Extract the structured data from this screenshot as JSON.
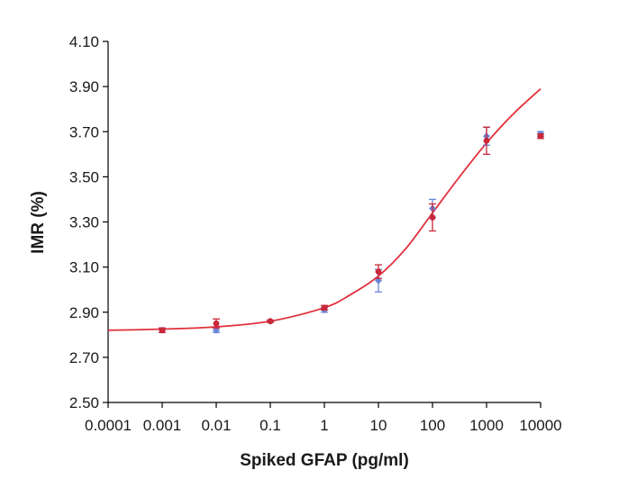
{
  "chart_data": {
    "type": "scatter",
    "title": "",
    "xlabel": "Spiked GFAP (pg/ml)",
    "ylabel": "IMR (%)",
    "x_scale": "log",
    "xlim": [
      0.0001,
      10000
    ],
    "ylim": [
      2.5,
      4.1
    ],
    "x_ticks": [
      "0.0001",
      "0.001",
      "0.01",
      "0.1",
      "1",
      "10",
      "100",
      "1000",
      "10000"
    ],
    "y_ticks": [
      "2.50",
      "2.70",
      "2.90",
      "3.10",
      "3.30",
      "3.50",
      "3.70",
      "3.90",
      "4.10"
    ],
    "grid": false,
    "legend": "none",
    "colors": {
      "series_a": "#6b84d6",
      "series_b": "#c8283a",
      "fit": "#e0303c",
      "axis": "#000000"
    },
    "series": [
      {
        "x": [
          0.001,
          0.01,
          0.1,
          1,
          10,
          100,
          1000,
          10000
        ],
        "y": [
          2.82,
          2.82,
          2.86,
          2.91,
          3.04,
          3.36,
          3.68,
          3.69
        ],
        "err": [
          0.01,
          0.01,
          0.005,
          0.01,
          0.05,
          0.04,
          0.04,
          0.01
        ]
      },
      {
        "x": [
          0.001,
          0.01,
          0.1,
          1,
          10,
          100,
          1000,
          10000
        ],
        "y": [
          2.82,
          2.85,
          2.86,
          2.92,
          3.08,
          3.32,
          3.66,
          3.68
        ],
        "err": [
          0.01,
          0.02,
          0.005,
          0.01,
          0.03,
          0.06,
          0.06,
          0.01
        ]
      }
    ],
    "fit_curve": {
      "x": [
        0.0001,
        0.001,
        0.01,
        0.1,
        1,
        3.16,
        10,
        31.6,
        100,
        316,
        1000,
        3160,
        10000
      ],
      "y": [
        2.82,
        2.825,
        2.835,
        2.86,
        2.92,
        2.98,
        3.06,
        3.18,
        3.34,
        3.5,
        3.65,
        3.78,
        3.89
      ]
    }
  }
}
